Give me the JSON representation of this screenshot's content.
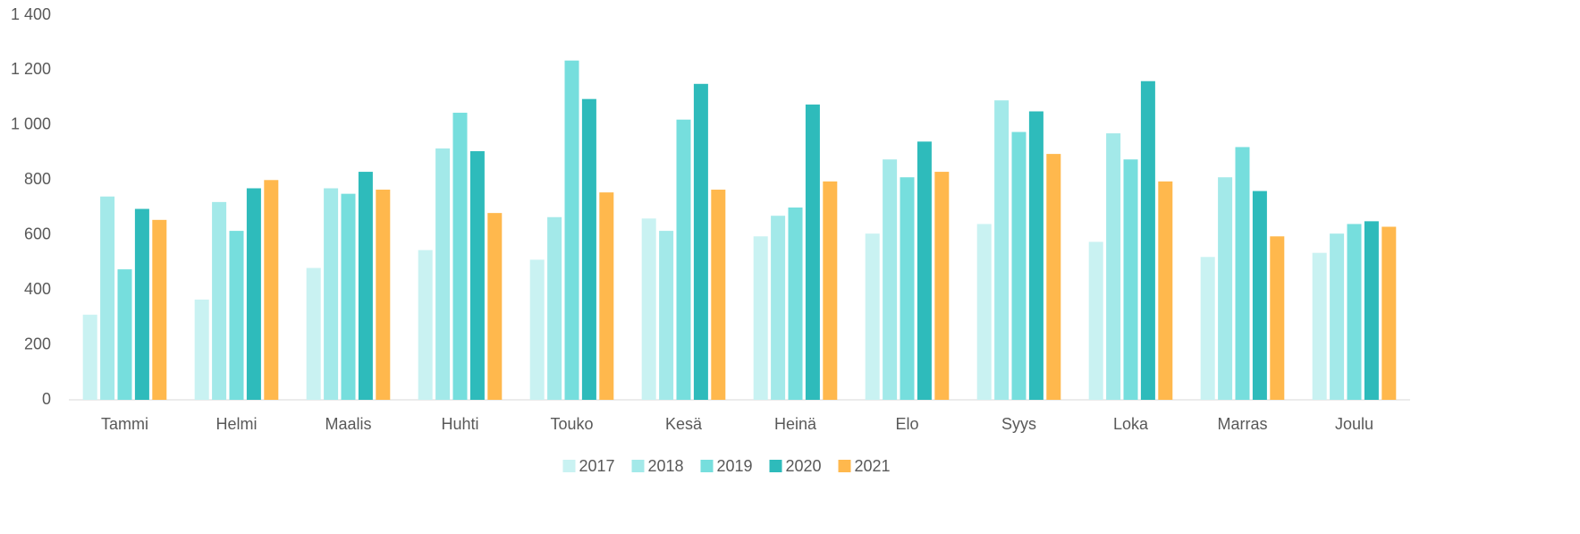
{
  "chart_data": {
    "type": "bar",
    "categories": [
      "Tammi",
      "Helmi",
      "Maalis",
      "Huhti",
      "Touko",
      "Kesä",
      "Heinä",
      "Elo",
      "Syys",
      "Loka",
      "Marras",
      "Joulu"
    ],
    "series": [
      {
        "name": "2017",
        "color": "#c9f2f2",
        "values": [
          310,
          365,
          480,
          545,
          510,
          660,
          595,
          605,
          640,
          575,
          520,
          535
        ]
      },
      {
        "name": "2018",
        "color": "#a3e9e9",
        "values": [
          740,
          720,
          770,
          915,
          665,
          615,
          670,
          875,
          1090,
          970,
          810,
          605
        ]
      },
      {
        "name": "2019",
        "color": "#76dedd",
        "values": [
          475,
          615,
          750,
          1045,
          1235,
          1020,
          700,
          810,
          975,
          875,
          920,
          640
        ]
      },
      {
        "name": "2020",
        "color": "#2ebbbb",
        "values": [
          695,
          770,
          830,
          905,
          1095,
          1150,
          1075,
          940,
          1050,
          1160,
          760,
          650
        ]
      },
      {
        "name": "2021",
        "color": "#ffb84d",
        "values": [
          655,
          800,
          765,
          680,
          755,
          765,
          795,
          830,
          895,
          795,
          595,
          630
        ]
      }
    ],
    "ylim": [
      0,
      1400
    ],
    "yticks": [
      0,
      200,
      400,
      600,
      800,
      {
        "value": 1000,
        "label": "1 000"
      },
      {
        "value": 1200,
        "label": "1 200"
      },
      {
        "value": 1400,
        "label": "1 400"
      }
    ],
    "grid": false,
    "legend": "bottom"
  }
}
